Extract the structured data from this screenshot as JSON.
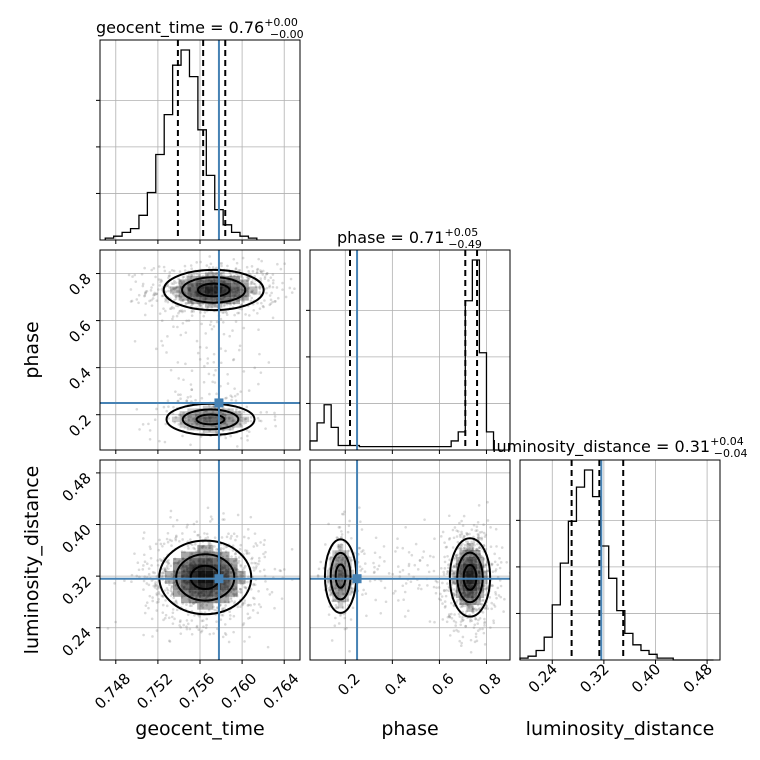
{
  "figure": {
    "parameters": [
      "geocent_time",
      "phase",
      "luminosity_distance"
    ],
    "titles": [
      {
        "label": "geocent_time = 0.76",
        "plus": "+0.00",
        "minus": "−0.00"
      },
      {
        "label": "phase = 0.71",
        "plus": "+0.05",
        "minus": "−0.49"
      },
      {
        "label": "luminosity_distance = 0.31",
        "plus": "+0.04",
        "minus": "−0.04"
      }
    ],
    "truth_color": "#4682b4"
  },
  "chart_data": [
    {
      "type": "histogram",
      "param": "geocent_time",
      "xlim": [
        0.7465,
        0.7655
      ],
      "bin_edges_start": 0.747,
      "bin_width": 0.0008,
      "counts": [
        1,
        2,
        4,
        6,
        13,
        25,
        45,
        66,
        92,
        100,
        86,
        58,
        34,
        16,
        8,
        4,
        2,
        1
      ],
      "quantiles": [
        0.7539,
        0.7563,
        0.7584
      ],
      "truth": 0.7578,
      "xticks": [
        "0.748",
        "0.752",
        "0.756",
        "0.760",
        "0.764"
      ]
    },
    {
      "type": "histogram",
      "param": "phase",
      "xlim": [
        0.05,
        0.9
      ],
      "bin_edges_start": 0.05,
      "bin_width": 0.03,
      "counts": [
        4,
        12,
        20,
        10,
        2,
        2,
        2,
        1.5,
        1.5,
        1.5,
        1.5,
        1.5,
        1.5,
        1.5,
        1.5,
        1.5,
        1.5,
        1.5,
        1.5,
        1.5,
        4,
        8,
        66,
        84,
        43,
        8,
        0
      ],
      "quantiles": [
        0.22,
        0.71,
        0.76
      ],
      "truth": 0.25,
      "xticks": [
        "0.2",
        "0.4",
        "0.6",
        "0.8"
      ]
    },
    {
      "type": "histogram",
      "param": "luminosity_distance",
      "xlim": [
        0.19,
        0.5
      ],
      "bin_edges_start": 0.19,
      "bin_width": 0.0125,
      "counts": [
        1,
        2,
        5,
        12,
        29,
        51,
        73,
        91,
        100,
        86,
        60,
        43,
        26,
        14,
        8,
        5,
        3,
        1,
        1,
        0,
        0,
        0,
        0,
        0
      ],
      "quantiles": [
        0.27,
        0.313,
        0.35
      ],
      "truth": 0.316,
      "xticks": [
        "0.24",
        "0.32",
        "0.40",
        "0.48"
      ]
    },
    {
      "type": "contour",
      "x": "geocent_time",
      "y": "phase",
      "xlim": [
        0.7465,
        0.7655
      ],
      "ylim": [
        0.05,
        0.9
      ],
      "modes": [
        {
          "cx": 0.7573,
          "cy": 0.73,
          "sx": 0.0025,
          "sy": 0.045,
          "weight": 0.78
        },
        {
          "cx": 0.757,
          "cy": 0.18,
          "sx": 0.0022,
          "sy": 0.035,
          "weight": 0.22
        }
      ],
      "truth": [
        0.7578,
        0.25
      ],
      "yticks": [
        "0.2",
        "0.4",
        "0.6",
        "0.8"
      ]
    },
    {
      "type": "contour",
      "x": "geocent_time",
      "y": "luminosity_distance",
      "xlim": [
        0.7465,
        0.7655
      ],
      "ylim": [
        0.19,
        0.5
      ],
      "modes": [
        {
          "cx": 0.7565,
          "cy": 0.318,
          "sx": 0.0023,
          "sy": 0.03,
          "weight": 1.0
        }
      ],
      "truth": [
        0.7578,
        0.316
      ],
      "yticks": [
        "0.24",
        "0.32",
        "0.40",
        "0.48"
      ]
    },
    {
      "type": "contour",
      "x": "phase",
      "y": "luminosity_distance",
      "xlim": [
        0.05,
        0.9
      ],
      "ylim": [
        0.19,
        0.5
      ],
      "modes": [
        {
          "cx": 0.73,
          "cy": 0.318,
          "sx": 0.045,
          "sy": 0.032,
          "weight": 0.78
        },
        {
          "cx": 0.18,
          "cy": 0.32,
          "sx": 0.035,
          "sy": 0.03,
          "weight": 0.22
        }
      ],
      "truth": [
        0.25,
        0.316
      ]
    }
  ]
}
